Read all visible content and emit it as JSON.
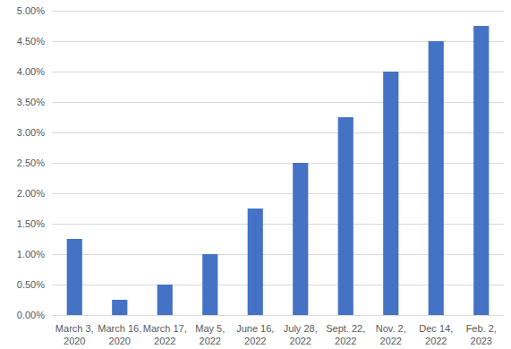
{
  "chart_data": {
    "type": "bar",
    "categories": [
      "March 3, 2020",
      "March 16, 2020",
      "March 17, 2022",
      "May 5, 2022",
      "June 16, 2022",
      "July 28, 2022",
      "Sept. 22, 2022",
      "Nov. 2, 2022",
      "Dec 14, 2022",
      "Feb. 2, 2023"
    ],
    "values": [
      1.25,
      0.25,
      0.5,
      1.0,
      1.75,
      2.5,
      3.25,
      4.0,
      4.5,
      4.75
    ],
    "color": "#4472c4",
    "ylim": [
      0,
      5
    ],
    "yticks": [
      {
        "value": 0,
        "label": "0.00%"
      },
      {
        "value": 0.5,
        "label": "0.50%"
      },
      {
        "value": 1,
        "label": "1.00%"
      },
      {
        "value": 1.5,
        "label": "1.50%"
      },
      {
        "value": 2,
        "label": "2.00%"
      },
      {
        "value": 2.5,
        "label": "2.50%"
      },
      {
        "value": 3,
        "label": "3.00%"
      },
      {
        "value": 3.5,
        "label": "3.50%"
      },
      {
        "value": 4,
        "label": "4.00%"
      },
      {
        "value": 4.5,
        "label": "4.50%"
      },
      {
        "value": 5,
        "label": "5.00%"
      }
    ],
    "grid": true
  }
}
